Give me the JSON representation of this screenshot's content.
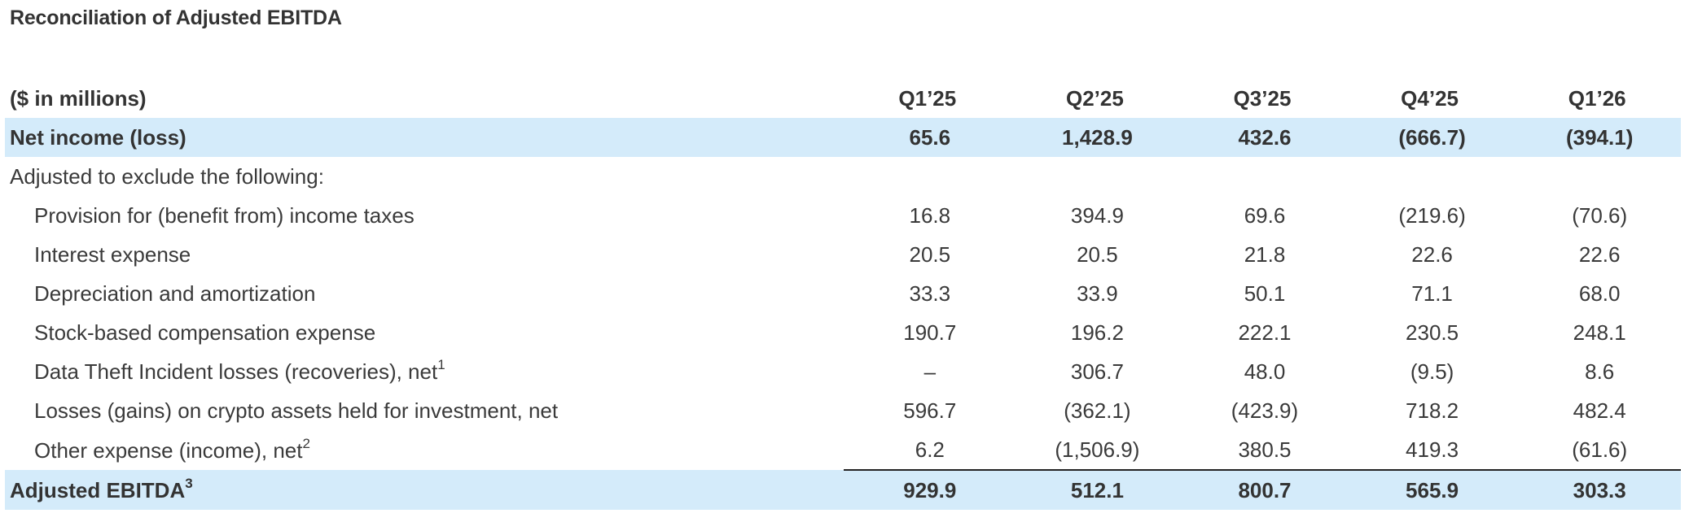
{
  "title": "Reconciliation of Adjusted EBITDA",
  "table": {
    "units_header": "($ in millions)",
    "periods": [
      "Q1’25",
      "Q2’25",
      "Q3’25",
      "Q4’25",
      "Q1’26"
    ],
    "net_income": {
      "label": "Net income (loss)",
      "values": [
        "65.6",
        "1,428.9",
        "432.6",
        "(666.7)",
        "(394.1)"
      ]
    },
    "adjusted_heading": "Adjusted to exclude the following:",
    "adjustments": [
      {
        "label": "Provision for (benefit from) income taxes",
        "footnote": "",
        "values": [
          "16.8",
          "394.9",
          "69.6",
          "(219.6)",
          "(70.6)"
        ]
      },
      {
        "label": "Interest expense",
        "footnote": "",
        "values": [
          "20.5",
          "20.5",
          "21.8",
          "22.6",
          "22.6"
        ]
      },
      {
        "label": "Depreciation and amortization",
        "footnote": "",
        "values": [
          "33.3",
          "33.9",
          "50.1",
          "71.1",
          "68.0"
        ]
      },
      {
        "label": "Stock-based compensation expense",
        "footnote": "",
        "values": [
          "190.7",
          "196.2",
          "222.1",
          "230.5",
          "248.1"
        ]
      },
      {
        "label": "Data Theft Incident losses (recoveries), net",
        "footnote": "1",
        "values": [
          "–",
          "306.7",
          "48.0",
          "(9.5)",
          "8.6"
        ]
      },
      {
        "label": "Losses (gains) on crypto assets held for investment, net",
        "footnote": "",
        "values": [
          "596.7",
          "(362.1)",
          "(423.9)",
          "718.2",
          "482.4"
        ]
      },
      {
        "label": "Other expense (income), net",
        "footnote": "2",
        "values": [
          "6.2",
          "(1,506.9)",
          "380.5",
          "419.3",
          "(61.6)"
        ]
      }
    ],
    "adjusted_ebitda": {
      "label": "Adjusted EBITDA",
      "footnote": "3",
      "values": [
        "929.9",
        "512.1",
        "800.7",
        "565.9",
        "303.3"
      ]
    }
  },
  "colors": {
    "highlight_row_bg": "#d4ebfa",
    "text": "#2b2b2b",
    "rule": "#222222"
  }
}
